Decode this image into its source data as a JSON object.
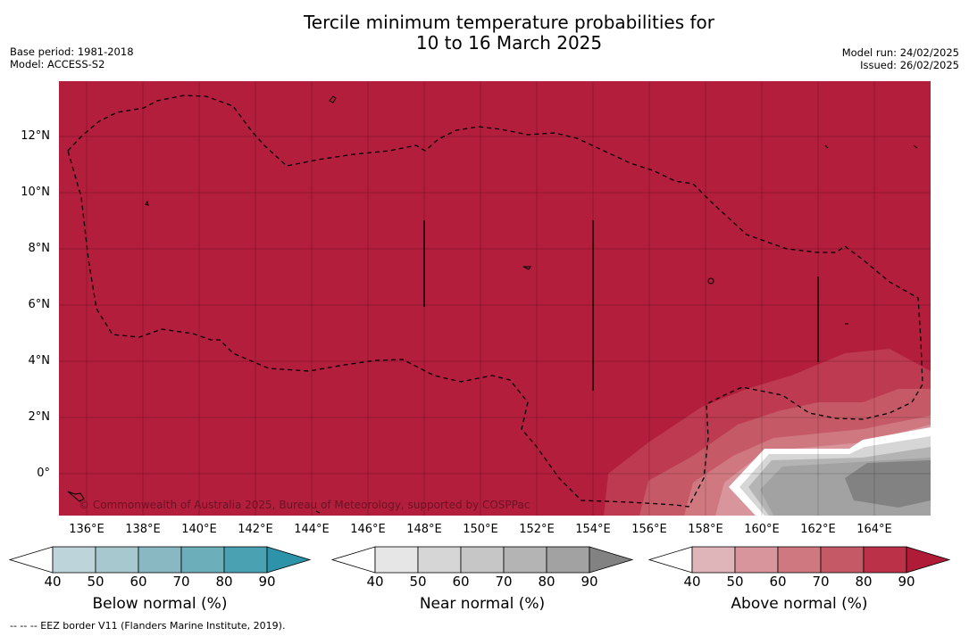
{
  "title_line1": "Tercile minimum temperature probabilities for",
  "title_line2": "10 to 16 March 2025",
  "base_period": "Base period: 1981-2018",
  "model": "Model: ACCESS-S2",
  "model_run": "Model run: 24/02/2025",
  "issued": "Issued: 26/02/2025",
  "credit": "© Commonwealth of Australia 2025, Bureau of Meteorology, supported by COSPPac",
  "footer": "-- -- -- EEZ border V11 (Flanders Marine Institute, 2019).",
  "lat_labels": [
    "12°N",
    "10°N",
    "8°N",
    "6°N",
    "4°N",
    "2°N",
    "0°"
  ],
  "lon_labels": [
    "136°E",
    "138°E",
    "140°E",
    "142°E",
    "144°E",
    "146°E",
    "148°E",
    "150°E",
    "152°E",
    "154°E",
    "156°E",
    "158°E",
    "160°E",
    "162°E",
    "164°E"
  ],
  "colorbars": {
    "below": {
      "title": "Below normal (%)",
      "ticks": [
        "40",
        "50",
        "60",
        "70",
        "80",
        "90"
      ],
      "colors": [
        "#ffffff",
        "#bed4db",
        "#a7c8cf",
        "#89b7c2",
        "#6daebb",
        "#4aa1b2",
        "#2d93a8"
      ]
    },
    "near": {
      "title": "Near normal (%)",
      "ticks": [
        "40",
        "50",
        "60",
        "70",
        "80",
        "90"
      ],
      "colors": [
        "#ffffff",
        "#e6e6e6",
        "#d6d6d6",
        "#c6c6c6",
        "#b4b4b4",
        "#a2a2a2",
        "#828282"
      ]
    },
    "above": {
      "title": "Above normal (%)",
      "ticks": [
        "40",
        "50",
        "60",
        "70",
        "80",
        "90"
      ],
      "colors": [
        "#ffffff",
        "#e0b5ba",
        "#d8959c",
        "#cf7880",
        "#c55a66",
        "#bb3248",
        "#b01c38"
      ]
    }
  },
  "map_colors": {
    "dominant": "#b21e3b",
    "above_70": "#c55a66",
    "above_60": "#cf7880",
    "above_50": "#d8959c",
    "near_70": "#b4b4b4",
    "near_80": "#a2a2a2",
    "near_90": "#828282"
  }
}
